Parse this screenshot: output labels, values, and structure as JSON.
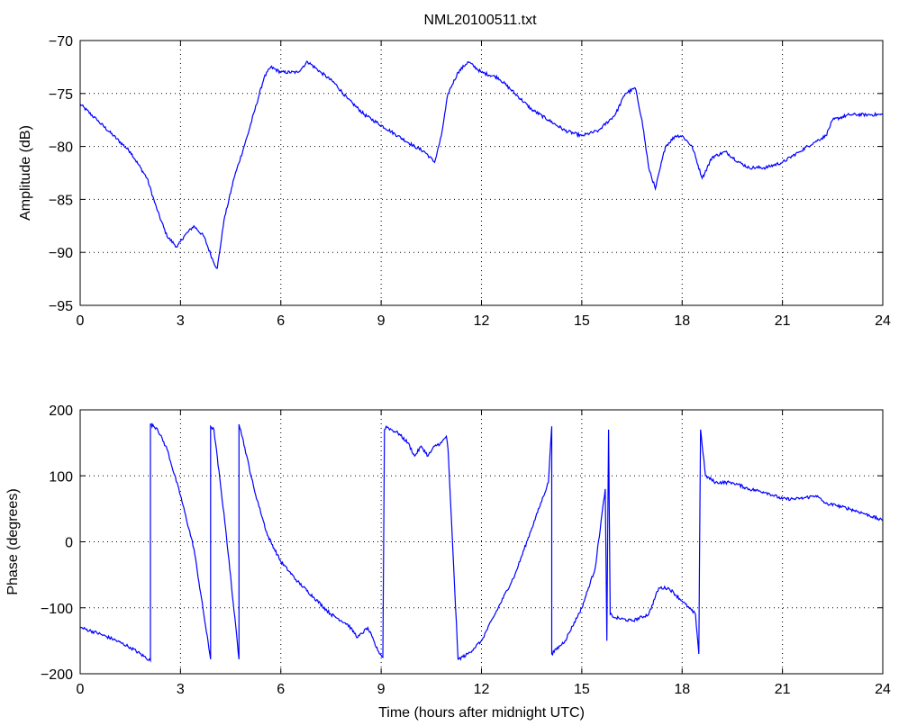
{
  "figure": {
    "title": "NML20100511.txt",
    "line_color": "#0000ff",
    "axis_color": "#000000",
    "grid_color": "#000000"
  },
  "chart_data": [
    {
      "type": "line",
      "title": "NML20100511.txt",
      "xlabel": "",
      "ylabel": "Amplitude (dB)",
      "xlim": [
        0,
        24
      ],
      "ylim": [
        -95,
        -70
      ],
      "xticks": [
        0,
        3,
        6,
        9,
        12,
        15,
        18,
        21,
        24
      ],
      "yticks": [
        -95,
        -90,
        -85,
        -80,
        -75,
        -70
      ],
      "grid": true,
      "series": [
        {
          "x": [
            0,
            0.5,
            1,
            1.5,
            2,
            2.3,
            2.6,
            2.9,
            3.1,
            3.4,
            3.7,
            4.0,
            4.1,
            4.3,
            4.6,
            5.0,
            5.5,
            5.7,
            6.0,
            6.5,
            6.8,
            7.2,
            7.6,
            8.0,
            8.5,
            9.0,
            9.5,
            10.0,
            10.3,
            10.6,
            10.8,
            11.0,
            11.3,
            11.6,
            12.0,
            12.5,
            13.0,
            13.5,
            14.0,
            14.5,
            15.0,
            15.5,
            16.0,
            16.3,
            16.6,
            16.8,
            17.0,
            17.2,
            17.5,
            17.8,
            18.0,
            18.3,
            18.6,
            18.9,
            19.3,
            19.7,
            20.0,
            20.5,
            21.0,
            21.5,
            22.0,
            22.3,
            22.5,
            23.0,
            23.5,
            24.0
          ],
          "y": [
            -76,
            -77.5,
            -79,
            -80.5,
            -83,
            -86,
            -88.5,
            -89.5,
            -88.5,
            -87.5,
            -88.5,
            -91,
            -91.5,
            -87,
            -83,
            -79,
            -73.5,
            -72.5,
            -73,
            -73,
            -72,
            -73,
            -74,
            -75.5,
            -77,
            -78,
            -79,
            -80,
            -80.5,
            -81.5,
            -79,
            -75,
            -73,
            -72,
            -73,
            -73.5,
            -75,
            -76.5,
            -77.5,
            -78.5,
            -79,
            -78.5,
            -77,
            -75,
            -74.5,
            -77.5,
            -82,
            -84,
            -80,
            -79,
            -79,
            -80,
            -83,
            -81,
            -80.5,
            -81.5,
            -82,
            -82,
            -81.5,
            -80.5,
            -79.5,
            -79,
            -77.5,
            -77,
            -77,
            -77
          ]
        }
      ]
    },
    {
      "type": "line",
      "title": "",
      "xlabel": "Time (hours after midnight UTC)",
      "ylabel": "Phase (degrees)",
      "xlim": [
        0,
        24
      ],
      "ylim": [
        -200,
        200
      ],
      "xticks": [
        0,
        3,
        6,
        9,
        12,
        15,
        18,
        21,
        24
      ],
      "yticks": [
        -200,
        -100,
        0,
        100,
        200
      ],
      "grid": true,
      "series": [
        {
          "x": [
            0,
            0.5,
            1.0,
            1.5,
            2.1,
            2.1,
            2.3,
            2.6,
            3.0,
            3.4,
            3.9,
            3.9,
            4.0,
            4.35,
            4.75,
            4.75,
            4.8,
            5.2,
            5.6,
            6.0,
            6.5,
            7.0,
            7.5,
            8.0,
            8.3,
            8.6,
            8.9,
            9.05,
            9.1,
            9.15,
            9.3,
            9.5,
            9.8,
            10.0,
            10.2,
            10.4,
            10.6,
            10.8,
            10.95,
            11.0,
            11.3,
            11.6,
            12.0,
            12.5,
            13.0,
            13.5,
            14.0,
            14.1,
            14.1,
            14.5,
            15.0,
            15.4,
            15.7,
            15.75,
            15.8,
            15.85,
            16.0,
            16.5,
            17.0,
            17.3,
            17.6,
            18.0,
            18.4,
            18.5,
            18.55,
            18.7,
            19.0,
            19.5,
            20.0,
            20.5,
            21.0,
            21.5,
            22.0,
            22.3,
            22.6,
            23.0,
            23.5,
            24.0
          ],
          "y": [
            -130,
            -138,
            -148,
            -160,
            -180,
            178,
            172,
            140,
            70,
            -10,
            -178,
            175,
            170,
            20,
            -178,
            178,
            170,
            80,
            10,
            -30,
            -60,
            -85,
            -110,
            -125,
            -145,
            -130,
            -165,
            -175,
            170,
            175,
            170,
            165,
            150,
            130,
            145,
            130,
            145,
            150,
            160,
            140,
            -178,
            -170,
            -150,
            -100,
            -50,
            20,
            90,
            175,
            -170,
            -150,
            -100,
            -40,
            80,
            -150,
            170,
            -110,
            -115,
            -120,
            -110,
            -70,
            -70,
            -90,
            -110,
            -170,
            170,
            100,
            90,
            90,
            80,
            75,
            65,
            65,
            70,
            58,
            55,
            50,
            42,
            32
          ]
        }
      ]
    }
  ]
}
